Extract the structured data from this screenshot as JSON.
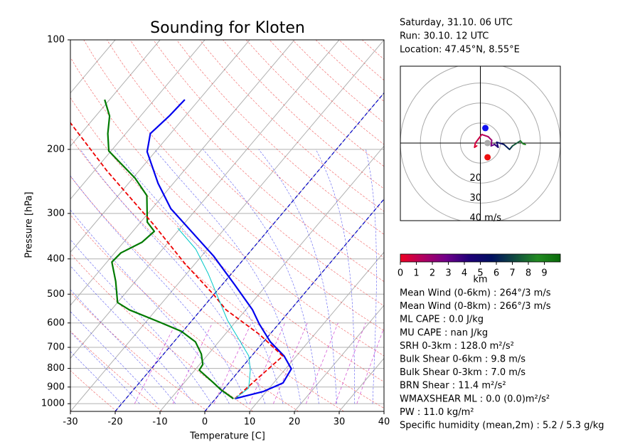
{
  "header": {
    "lines": [
      "Saturday, 31.10. 06 UTC",
      "Run: 30.10. 12 UTC",
      "Location: 47.45°N, 8.55°E"
    ]
  },
  "chart_data": {
    "type": "skewt",
    "title": "Sounding for Kloten",
    "xlabel": "Temperature [C]",
    "ylabel": "Pressure [hPa]",
    "xlim": [
      -30,
      40
    ],
    "xticks": [
      -30,
      -20,
      -10,
      0,
      10,
      20,
      30,
      40
    ],
    "ylim": [
      1050,
      100
    ],
    "yticks": [
      100,
      200,
      300,
      400,
      500,
      600,
      700,
      800,
      900,
      1000
    ],
    "log_y": true,
    "grid": true,
    "highlight_isotherms": [
      -20,
      0
    ],
    "highlight_color": "#0000cc",
    "series": [
      {
        "color": "#0000ee",
        "dashed": false,
        "width": 2.2,
        "pressure": [
          969,
          926,
          877,
          802,
          740,
          676,
          604,
          552,
          471,
          393,
          291,
          248,
          203,
          181,
          162,
          146
        ],
        "values": [
          4.3,
          9.3,
          12.1,
          11.3,
          7.3,
          1.5,
          -4.3,
          -8.5,
          -17.2,
          -27.3,
          -45.8,
          -53.4,
          -61.8,
          -64.5,
          -63.6,
          -63.2
        ]
      },
      {
        "color": "#007a00",
        "dashed": false,
        "width": 2.2,
        "pressure": [
          969,
          914,
          874,
          809,
          780,
          730,
          676,
          632,
          598,
          552,
          527,
          461,
          408,
          385,
          360,
          336,
          317,
          268,
          240,
          202,
          181,
          162,
          146
        ],
        "values": [
          4.0,
          -0.6,
          -3.6,
          -9.0,
          -9.3,
          -11.6,
          -15.2,
          -20.4,
          -26.7,
          -36.0,
          -40.0,
          -44.4,
          -48.9,
          -48.6,
          -45.9,
          -45.2,
          -48.5,
          -53.6,
          -59.5,
          -70.5,
          -74.0,
          -76.9,
          -81.1
        ]
      },
      {
        "color": "#ee0000",
        "dashed": true,
        "width": 1.8,
        "pressure": [
          969,
          809,
          740,
          646,
          552,
          500,
          412,
          321,
          229,
          169
        ],
        "values": [
          4.3,
          6.1,
          7.0,
          -2.2,
          -14.4,
          -20.2,
          -32.3,
          -46.8,
          -67.2,
          -84.4
        ]
      },
      {
        "color": "#00c8c8",
        "dashed": false,
        "width": 1,
        "pressure": [
          969,
          906,
          809,
          740,
          661,
          590,
          504,
          440,
          376,
          329
        ],
        "values": [
          4.3,
          5.4,
          2.4,
          -0.6,
          -6.3,
          -12.1,
          -19.1,
          -25.1,
          -32.6,
          -40.6
        ]
      }
    ]
  },
  "hodograph": {
    "type": "hodograph",
    "lim": [
      -40,
      40
    ],
    "rings": [
      10,
      20,
      30,
      40
    ],
    "ring_labels": [
      {
        "value": 20,
        "label": "20"
      },
      {
        "value": 30,
        "label": "30"
      },
      {
        "value": 40,
        "label": "40 m/s"
      }
    ],
    "u": [
      -1.8,
      -2.9,
      -2.5,
      0.7,
      3.9,
      5.7,
      5.4,
      7.1,
      8.9,
      8.2,
      11.8,
      14.6,
      16.1,
      20.0,
      21.4,
      22.5
    ],
    "v": [
      -1.4,
      -2.1,
      0,
      4.3,
      3.2,
      1.4,
      -1.4,
      -0.7,
      -2.1,
      0.4,
      -0.7,
      -3.2,
      -1.4,
      1.1,
      -0.4,
      -0.7
    ],
    "height": [
      0,
      0.3,
      0.6,
      1.0,
      1.5,
      2.0,
      2.5,
      3.5,
      4.5,
      5.0,
      5.5,
      6.5,
      7.0,
      8.0,
      8.5,
      9.0
    ],
    "markers": [
      {
        "u": 2.5,
        "v": 7.5,
        "color": "#1010ee"
      },
      {
        "u": 3.6,
        "v": 0,
        "color": "#aaaaaa"
      },
      {
        "u": 3.6,
        "v": -7.1,
        "color": "#ee1010"
      }
    ]
  },
  "colorbar": {
    "range": [
      0,
      10
    ],
    "ticks": [
      0,
      1,
      2,
      3,
      4,
      5,
      6,
      7,
      8,
      9
    ],
    "label": "km",
    "colors": [
      "#ee0022",
      "#b00060",
      "#70008a",
      "#200078",
      "#001060",
      "#104a40",
      "#228b22",
      "#0a6a0a"
    ]
  },
  "stats": [
    "Mean Wind (0-6km) : 264°/3 m/s",
    "Mean Wind (0-8km) : 266°/3 m/s",
    "ML CAPE : 0.0 J/kg",
    "MU CAPE : nan J/kg",
    "SRH 0-3km : 128.0 m²/s²",
    "Bulk Shear 0-6km : 9.8 m/s",
    "Bulk Shear 0-3km : 7.0 m/s",
    "BRN Shear : 11.4 m²/s²",
    "WMAXSHEAR ML : 0.0 (0.0)m²/s²",
    "PW : 11.0 kg/m²",
    "Specific humidity (mean,2m) : 5.2 / 5.3 g/kg"
  ]
}
